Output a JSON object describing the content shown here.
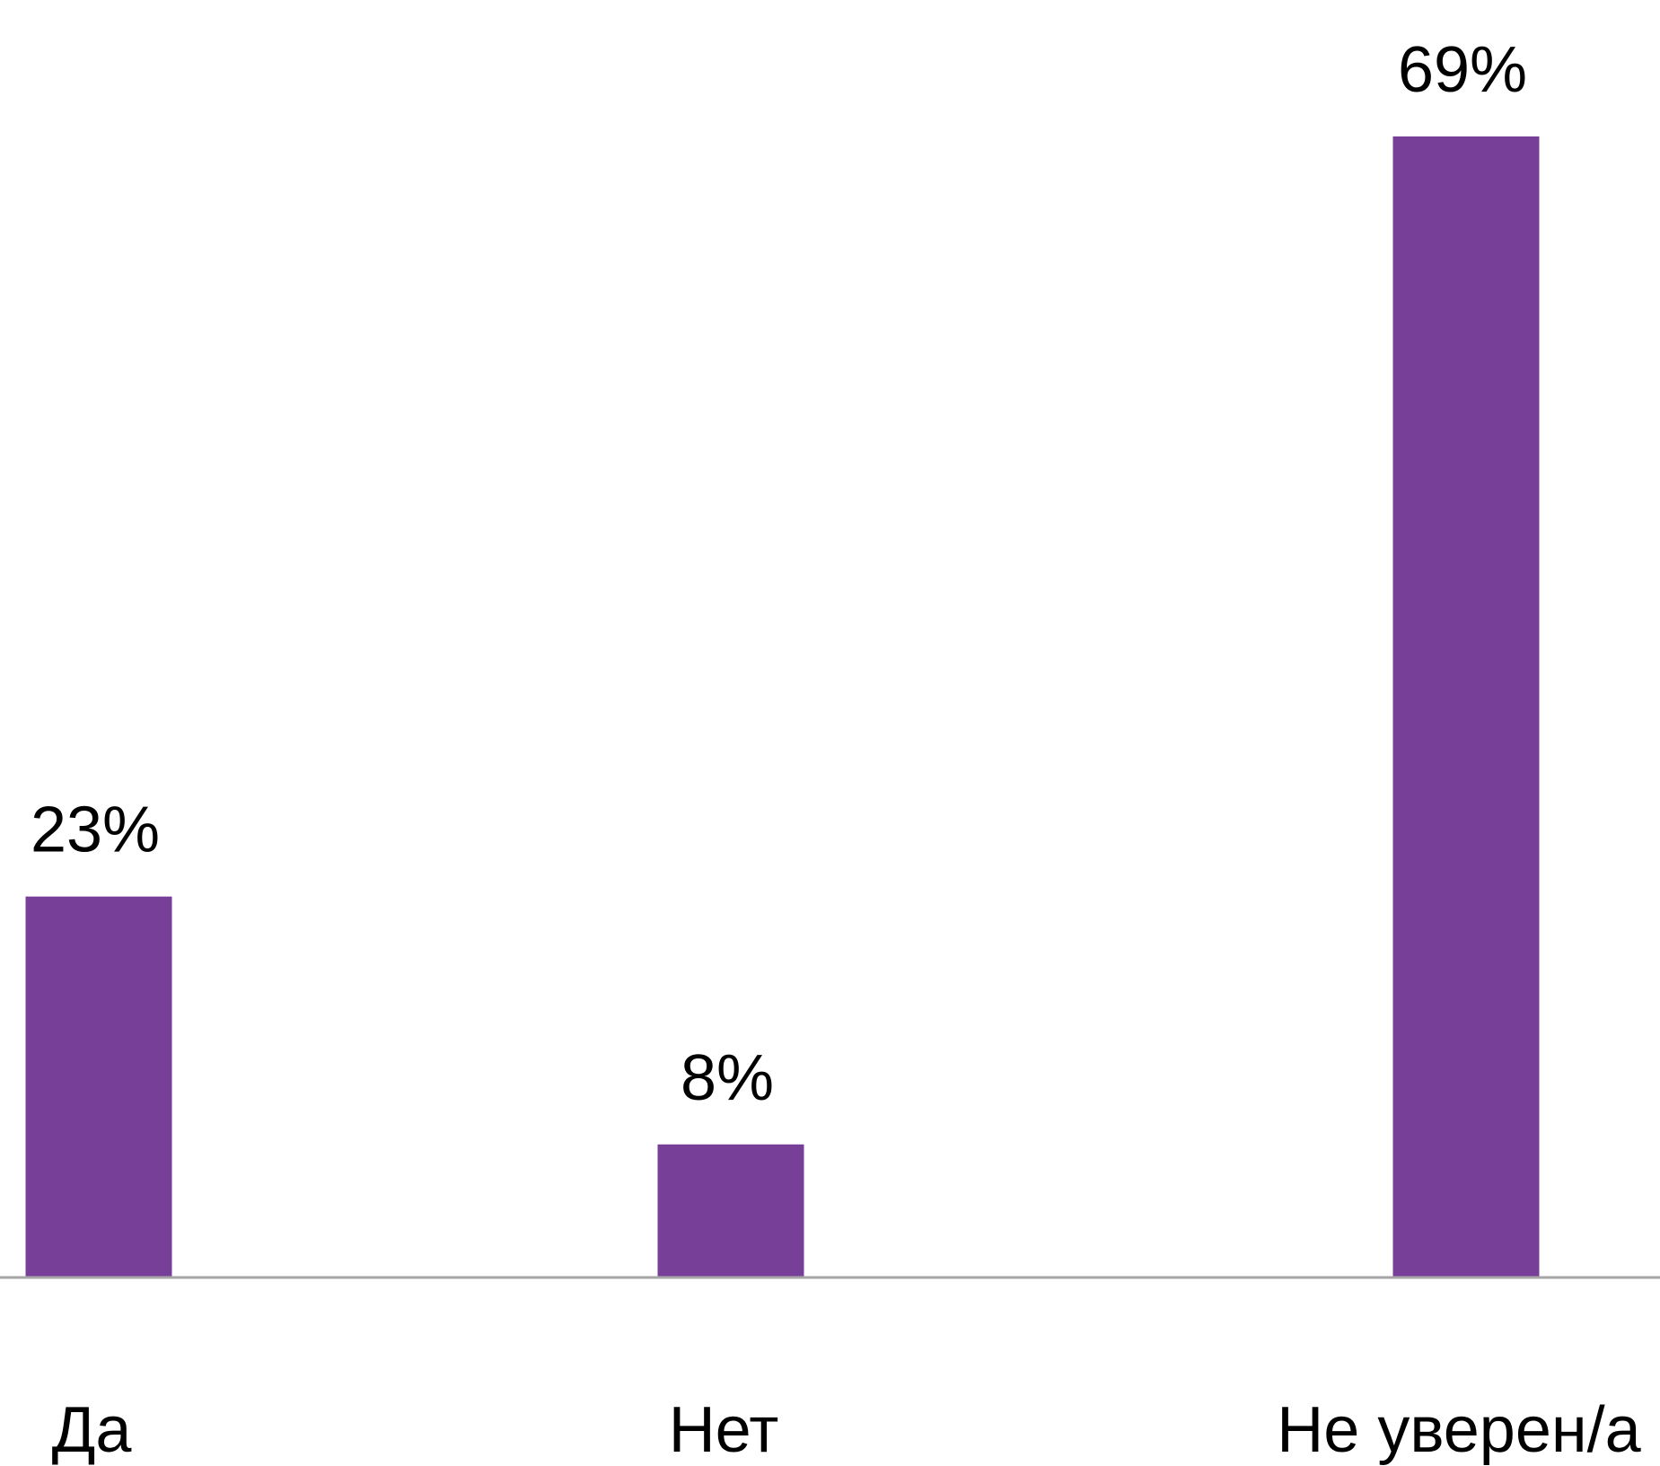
{
  "chart_data": {
    "type": "bar",
    "categories": [
      "Да",
      "Нет",
      "Не уверен/а"
    ],
    "values": [
      23,
      8,
      69
    ],
    "data_labels": [
      "23%",
      "8%",
      "69%"
    ],
    "ylim": [
      0,
      69
    ],
    "grid": false,
    "legend": "none",
    "colors": {
      "bar": "#783F98",
      "baseline": "#A6A6A6",
      "text": "#000000",
      "background": "#FFFFFF"
    }
  }
}
